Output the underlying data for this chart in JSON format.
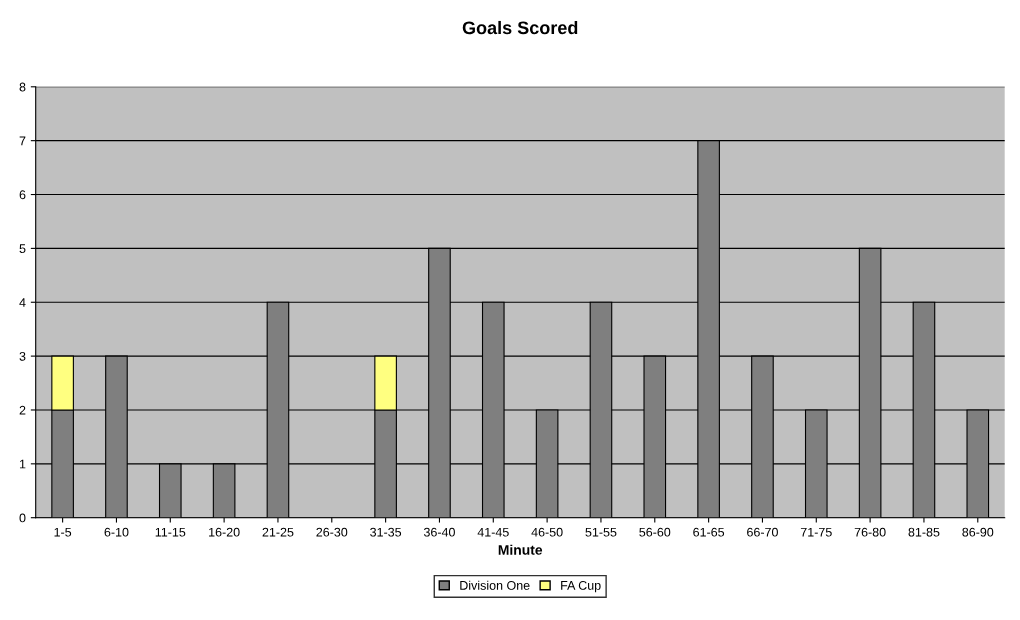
{
  "chart_data": {
    "type": "bar",
    "title": "Goals Scored",
    "xlabel": "Minute",
    "categories": [
      "1-5",
      "6-10",
      "11-15",
      "16-20",
      "21-25",
      "26-30",
      "31-35",
      "36-40",
      "41-45",
      "46-50",
      "51-55",
      "56-60",
      "61-65",
      "66-70",
      "71-75",
      "76-80",
      "81-85",
      "86-90"
    ],
    "series": [
      {
        "name": "Division One",
        "color": "#7f7f7f",
        "values": [
          2,
          3,
          1,
          1,
          4,
          0,
          2,
          5,
          4,
          2,
          4,
          3,
          7,
          3,
          2,
          5,
          4,
          2
        ]
      },
      {
        "color": "#ff8080",
        "values": [
          0,
          0,
          0,
          0,
          0,
          0,
          0,
          0,
          0,
          0,
          0,
          0,
          0,
          0,
          0,
          0,
          0,
          0
        ]
      },
      {
        "name": "FA Cup",
        "color": "#ffff80",
        "values": [
          1,
          0,
          0,
          0,
          0,
          0,
          1,
          0,
          0,
          0,
          0,
          0,
          0,
          0,
          0,
          0,
          0,
          0
        ]
      }
    ],
    "stacked": true,
    "ylim": [
      0,
      8
    ],
    "yticks": [
      0,
      1,
      2,
      3,
      4,
      5,
      6,
      7,
      8
    ],
    "grid": "y",
    "legend": "bottom"
  }
}
